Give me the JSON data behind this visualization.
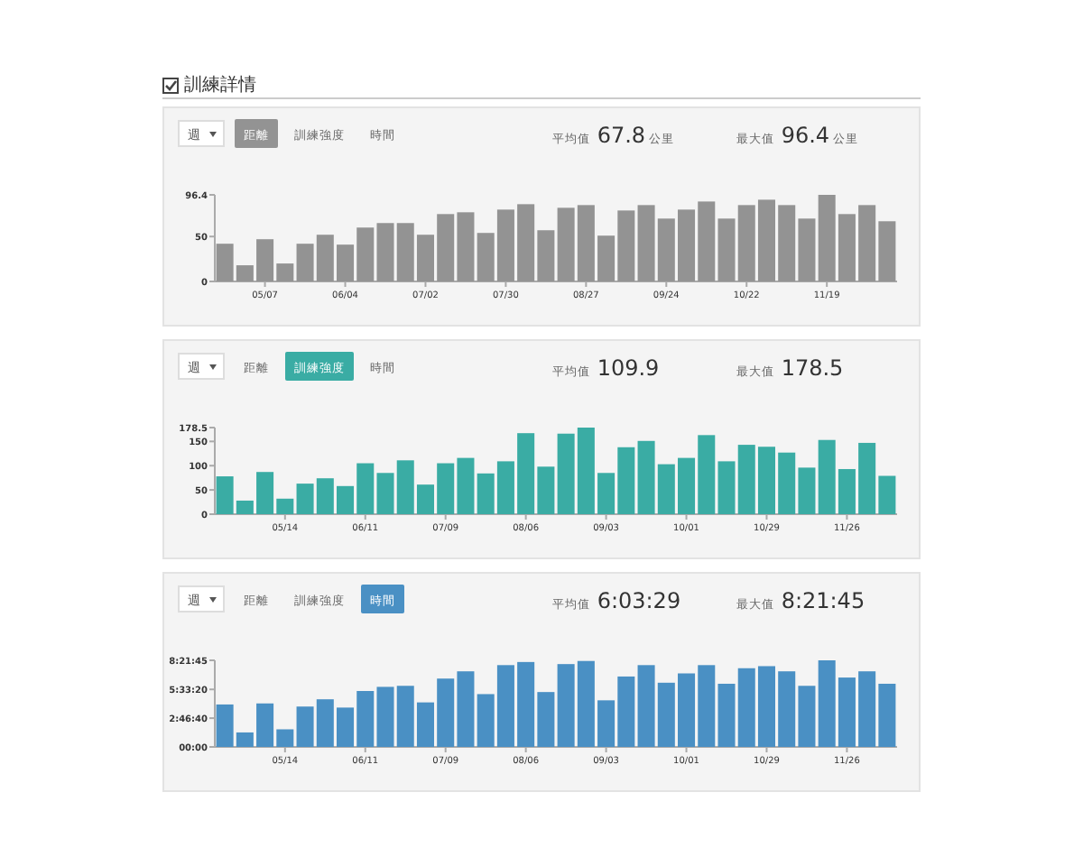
{
  "chart_data": [
    {
      "type": "bar",
      "title": "訓練詳情",
      "annotations": [
        "週",
        "距離",
        "訓練強度",
        "時間",
        "平均值 67.8 公里",
        "最大值 96.4 公里"
      ],
      "categories": [
        null,
        null,
        "05/07",
        null,
        null,
        null,
        "06/04",
        null,
        null,
        null,
        "07/02",
        null,
        null,
        null,
        "07/30",
        null,
        null,
        null,
        "08/27",
        null,
        null,
        null,
        "09/24",
        null,
        null,
        null,
        "10/22",
        null,
        null,
        null,
        "11/19",
        null,
        null,
        null
      ],
      "values": [
        42,
        18,
        47,
        20,
        42,
        52,
        41,
        60,
        65,
        65,
        52,
        75,
        77,
        54,
        80,
        86,
        57,
        82,
        85,
        51,
        79,
        85,
        70,
        80,
        89,
        70,
        85,
        91,
        85,
        70,
        96.4,
        75,
        85,
        67
      ],
      "color": "#939393",
      "ylim": [
        0,
        96.4
      ],
      "yticks": [
        0,
        50,
        96.4
      ]
    },
    {
      "type": "bar",
      "annotations": [
        "週",
        "距離",
        "訓練強度",
        "時間",
        "平均值 109.9",
        "最大值 178.5"
      ],
      "categories": [
        null,
        null,
        null,
        "05/14",
        null,
        null,
        null,
        "06/11",
        null,
        null,
        null,
        "07/09",
        null,
        null,
        null,
        "08/06",
        null,
        null,
        null,
        "09/03",
        null,
        null,
        null,
        "10/01",
        null,
        null,
        null,
        "10/29",
        null,
        null,
        null,
        "11/26",
        null,
        null
      ],
      "values": [
        78,
        28,
        87,
        32,
        63,
        74,
        58,
        105,
        85,
        111,
        61,
        105,
        116,
        84,
        109,
        167,
        98,
        166,
        178.5,
        85,
        138,
        151,
        103,
        116,
        163,
        109,
        143,
        139,
        127,
        96,
        153,
        93,
        147,
        79
      ],
      "color": "#3aaca4",
      "ylim": [
        0,
        178.5
      ],
      "yticks": [
        0,
        50,
        100,
        150,
        178.5
      ]
    },
    {
      "type": "bar",
      "annotations": [
        "週",
        "距離",
        "訓練強度",
        "時間",
        "平均值 6:03:29",
        "最大值 8:21:45"
      ],
      "categories": [
        null,
        null,
        null,
        "05/14",
        null,
        null,
        null,
        "06/11",
        null,
        null,
        null,
        "07/09",
        null,
        null,
        null,
        "08/06",
        null,
        null,
        null,
        "09/03",
        null,
        null,
        null,
        "10/01",
        null,
        null,
        null,
        "10/29",
        null,
        null,
        null,
        "11/26",
        null,
        null
      ],
      "values": [
        4.1,
        1.4,
        4.2,
        1.7,
        3.9,
        4.6,
        3.8,
        5.4,
        5.8,
        5.9,
        4.3,
        6.6,
        7.3,
        5.1,
        7.9,
        8.2,
        5.3,
        8.0,
        8.3,
        4.5,
        6.8,
        7.9,
        6.2,
        7.1,
        7.9,
        6.1,
        7.6,
        7.8,
        7.3,
        5.9,
        8.3625,
        6.7,
        7.3,
        6.1
      ],
      "color": "#4a90c4",
      "ylim": [
        0,
        8.3625
      ],
      "yticks": [
        {
          "value": 0,
          "label": "00:00"
        },
        {
          "value": 2.7778,
          "label": "2:46:40"
        },
        {
          "value": 5.5556,
          "label": "5:33:20"
        },
        {
          "value": 8.3625,
          "label": "8:21:45"
        }
      ]
    }
  ]
}
